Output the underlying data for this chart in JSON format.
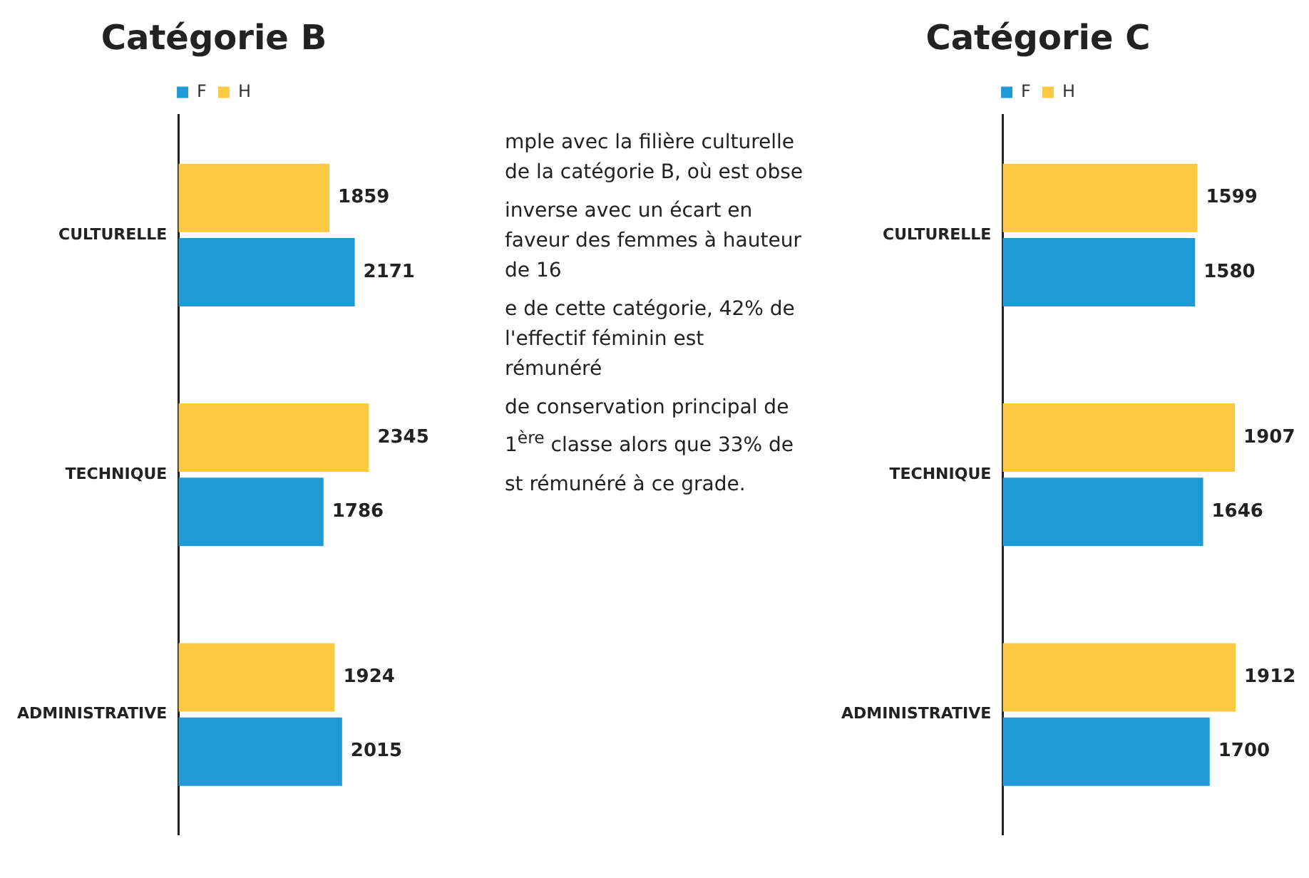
{
  "chart_data": [
    {
      "type": "bar",
      "orientation": "horizontal",
      "title": "Catégorie B",
      "categories": [
        "CULTURELLE",
        "TECHNIQUE",
        "ADMINISTRATIVE"
      ],
      "series": [
        {
          "name": "H",
          "color": "#fbc942",
          "values": [
            1859,
            2345,
            1924
          ]
        },
        {
          "name": "F",
          "color": "#1f9ad6",
          "values": [
            2171,
            1786,
            2015
          ]
        }
      ],
      "data_labels": true,
      "legend": "top",
      "tick_labels": "y",
      "annotations": [
        "mple avec la filière culturelle de la catégorie B, où est obse",
        "inverse avec un écart en faveur des femmes à hauteur de 16",
        "e de cette catégorie, 42% de l'effectif féminin est rémunéré",
        "de conservation principal de 1$^{ère}$ classe alors que 33% de",
        "st rémunéré à ce grade."
      ]
    },
    {
      "type": "bar",
      "orientation": "horizontal",
      "title": "Catégorie C",
      "categories": [
        "CULTURELLE",
        "TECHNIQUE",
        "ADMINISTRATIVE"
      ],
      "series": [
        {
          "name": "H",
          "color": "#fbc942",
          "values": [
            1599,
            1907,
            1912
          ]
        },
        {
          "name": "F",
          "color": "#1f9ad6",
          "values": [
            1580,
            1646,
            1700
          ]
        }
      ],
      "data_labels": true,
      "legend": "top",
      "tick_labels": "y"
    }
  ]
}
